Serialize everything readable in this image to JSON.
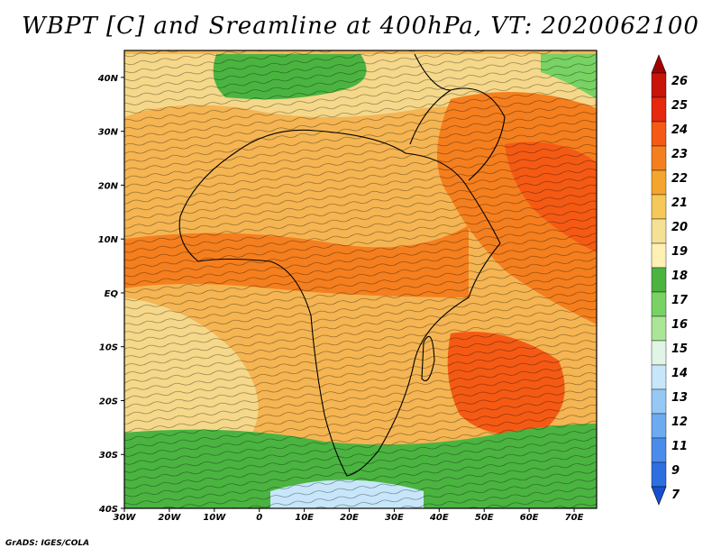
{
  "title": "WBPT [C] and Sreamline at 400hPa, VT: 2020062100",
  "credit": "GrADS: IGES/COLA",
  "map": {
    "lon_labels": [
      "30W",
      "20W",
      "10W",
      "0",
      "10E",
      "20E",
      "30E",
      "40E",
      "50E",
      "60E",
      "70E"
    ],
    "lat_labels": [
      "40N",
      "30N",
      "20N",
      "10N",
      "EQ",
      "10S",
      "20S",
      "30S",
      "40S"
    ]
  },
  "colorbar": {
    "labels": [
      "26",
      "25",
      "24",
      "23",
      "22",
      "21",
      "20",
      "19",
      "18",
      "17",
      "16",
      "15",
      "14",
      "13",
      "12",
      "11",
      "9",
      "7"
    ],
    "colors": [
      "#a50000",
      "#c8140a",
      "#e6280f",
      "#f55a14",
      "#f57f1e",
      "#f5a52d",
      "#f5c85a",
      "#f5e196",
      "#fff0b4",
      "#4bb441",
      "#78d264",
      "#aae696",
      "#e1f5e6",
      "#c8e6fa",
      "#96c8f5",
      "#6eaaf0",
      "#4b8ceb",
      "#2d6ee1",
      "#1450d2"
    ]
  }
}
